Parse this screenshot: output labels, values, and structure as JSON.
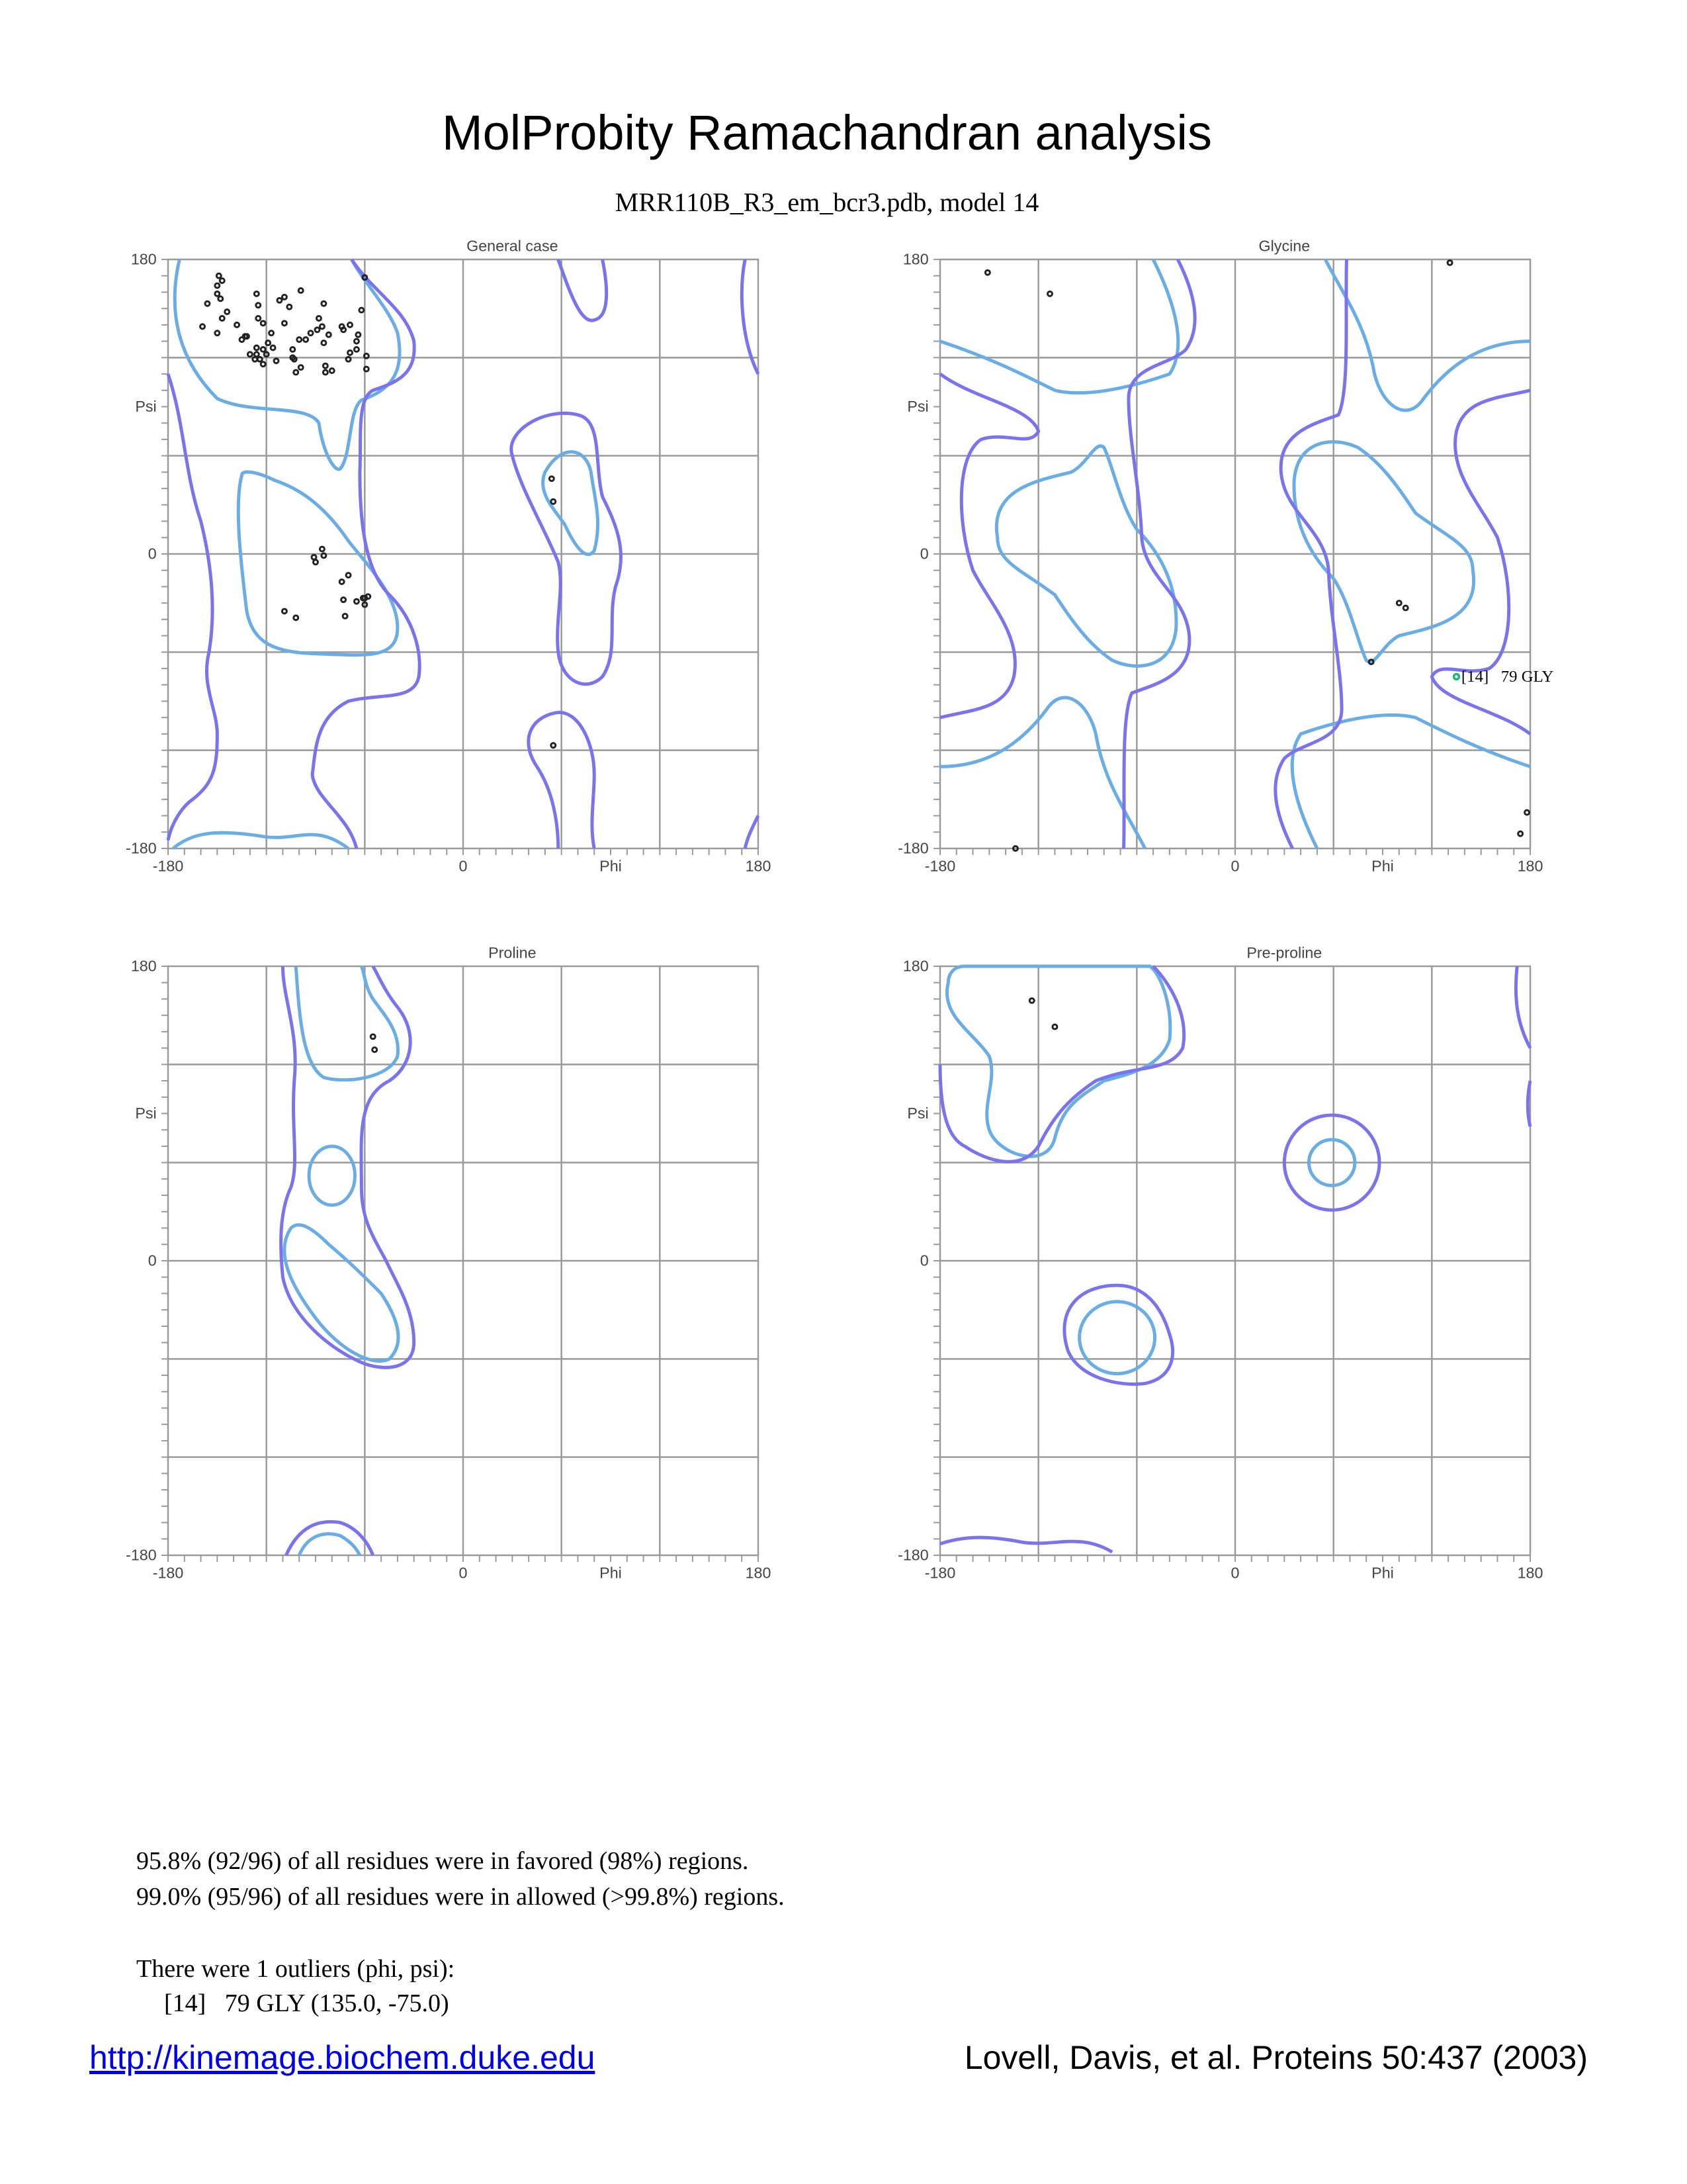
{
  "header": {
    "title": "MolProbity Ramachandran analysis",
    "subtitle": "MRR110B_R3_em_bcr3.pdb, model 14"
  },
  "colors": {
    "favored_contour": "#6aade4",
    "allowed_contour": "#7b73ee",
    "outlier_point": "#22b573",
    "point": "#222222"
  },
  "axis_labels": {
    "y_top": "180",
    "y_name": "Psi",
    "y_mid": "0",
    "y_bottom": "-180",
    "x_left": "-180",
    "x_mid": "0",
    "x_name": "Phi",
    "x_right": "180"
  },
  "chart_data": [
    {
      "type": "scatter",
      "title": "General case",
      "xlabel": "Phi",
      "ylabel": "Psi",
      "xlim": [
        -180,
        180
      ],
      "ylim": [
        -180,
        180
      ],
      "grid": true,
      "points": [
        [
          -149,
          170
        ],
        [
          -147,
          167
        ],
        [
          -150,
          164
        ],
        [
          -150,
          159
        ],
        [
          -148,
          156
        ],
        [
          -156,
          153
        ],
        [
          -144,
          148
        ],
        [
          -147,
          144
        ],
        [
          -159,
          139
        ],
        [
          -150,
          135
        ],
        [
          -138,
          140
        ],
        [
          -135,
          131
        ],
        [
          -133,
          133
        ],
        [
          -132,
          133
        ],
        [
          -126,
          159
        ],
        [
          -125,
          152
        ],
        [
          -125,
          144
        ],
        [
          -122,
          141
        ],
        [
          -117,
          135
        ],
        [
          -119,
          129
        ],
        [
          -126,
          126
        ],
        [
          -122,
          125
        ],
        [
          -116,
          126
        ],
        [
          -130,
          122
        ],
        [
          -126,
          122
        ],
        [
          -120,
          122
        ],
        [
          -127,
          119
        ],
        [
          -124,
          119
        ],
        [
          -122,
          116
        ],
        [
          -114,
          118
        ],
        [
          -109,
          157
        ],
        [
          -112,
          155
        ],
        [
          -106,
          151
        ],
        [
          -99,
          161
        ],
        [
          -109,
          141
        ],
        [
          -104,
          125
        ],
        [
          -104,
          120
        ],
        [
          -103,
          119
        ],
        [
          -99,
          114
        ],
        [
          -102,
          111
        ],
        [
          -100,
          131
        ],
        [
          -96,
          131
        ],
        [
          -93,
          135
        ],
        [
          -89,
          137
        ],
        [
          -86,
          139
        ],
        [
          -88,
          144
        ],
        [
          -85,
          153
        ],
        [
          -82,
          134
        ],
        [
          -85,
          129
        ],
        [
          -84,
          115
        ],
        [
          -84,
          111
        ],
        [
          -80,
          112
        ],
        [
          -74,
          139
        ],
        [
          -73,
          137
        ],
        [
          -69,
          140
        ],
        [
          -62,
          149
        ],
        [
          -60,
          169
        ],
        [
          -64,
          134
        ],
        [
          -65,
          130
        ],
        [
          -65,
          125
        ],
        [
          -69,
          123
        ],
        [
          -70,
          119
        ],
        [
          -59,
          121
        ],
        [
          -59,
          113
        ],
        [
          -86,
          3
        ],
        [
          -85,
          -1
        ],
        [
          -91,
          -2
        ],
        [
          -90,
          -5
        ],
        [
          -70,
          -13
        ],
        [
          -74,
          -17
        ],
        [
          -73,
          -28
        ],
        [
          -65,
          -29
        ],
        [
          -61,
          -27
        ],
        [
          -60,
          -27
        ],
        [
          -58,
          -26
        ],
        [
          -60,
          -31
        ],
        [
          -72,
          -38
        ],
        [
          -109,
          -35
        ],
        [
          -102,
          -39
        ],
        [
          54,
          46
        ],
        [
          55,
          32
        ],
        [
          55,
          -117
        ]
      ],
      "outliers": []
    },
    {
      "type": "scatter",
      "title": "Glycine",
      "xlabel": "Phi",
      "ylabel": "Psi",
      "xlim": [
        -180,
        180
      ],
      "ylim": [
        -180,
        180
      ],
      "grid": true,
      "points": [
        [
          -151,
          172
        ],
        [
          -113,
          159
        ],
        [
          131,
          178
        ],
        [
          100,
          -30
        ],
        [
          104,
          -33
        ],
        [
          83,
          -66
        ],
        [
          -134,
          -180
        ],
        [
          178,
          -158
        ],
        [
          174,
          -171
        ]
      ],
      "outliers": [
        {
          "phi": 135.0,
          "psi": -75.0,
          "label": "[14]   79 GLY"
        }
      ]
    },
    {
      "type": "scatter",
      "title": "Proline",
      "xlabel": "Phi",
      "ylabel": "Psi",
      "xlim": [
        -180,
        180
      ],
      "ylim": [
        -180,
        180
      ],
      "grid": true,
      "points": [
        [
          -55,
          137
        ],
        [
          -54,
          129
        ]
      ],
      "outliers": []
    },
    {
      "type": "scatter",
      "title": "Pre-proline",
      "xlabel": "Phi",
      "ylabel": "Psi",
      "xlim": [
        -180,
        180
      ],
      "ylim": [
        -180,
        180
      ],
      "grid": true,
      "points": [
        [
          -124,
          159
        ],
        [
          -110,
          143
        ]
      ],
      "outliers": []
    }
  ],
  "summary": {
    "favored": "95.8% (92/96) of all residues were in favored (98%) regions.",
    "allowed": "99.0% (95/96) of all residues were in allowed (>99.8%) regions.",
    "outliers_header": "There were 1 outliers (phi, psi):",
    "outlier_lines": [
      "[14]   79 GLY (135.0, -75.0)"
    ]
  },
  "footer": {
    "link": "http://kinemage.biochem.duke.edu",
    "citation": "Lovell, Davis, et al. Proteins 50:437 (2003)"
  }
}
